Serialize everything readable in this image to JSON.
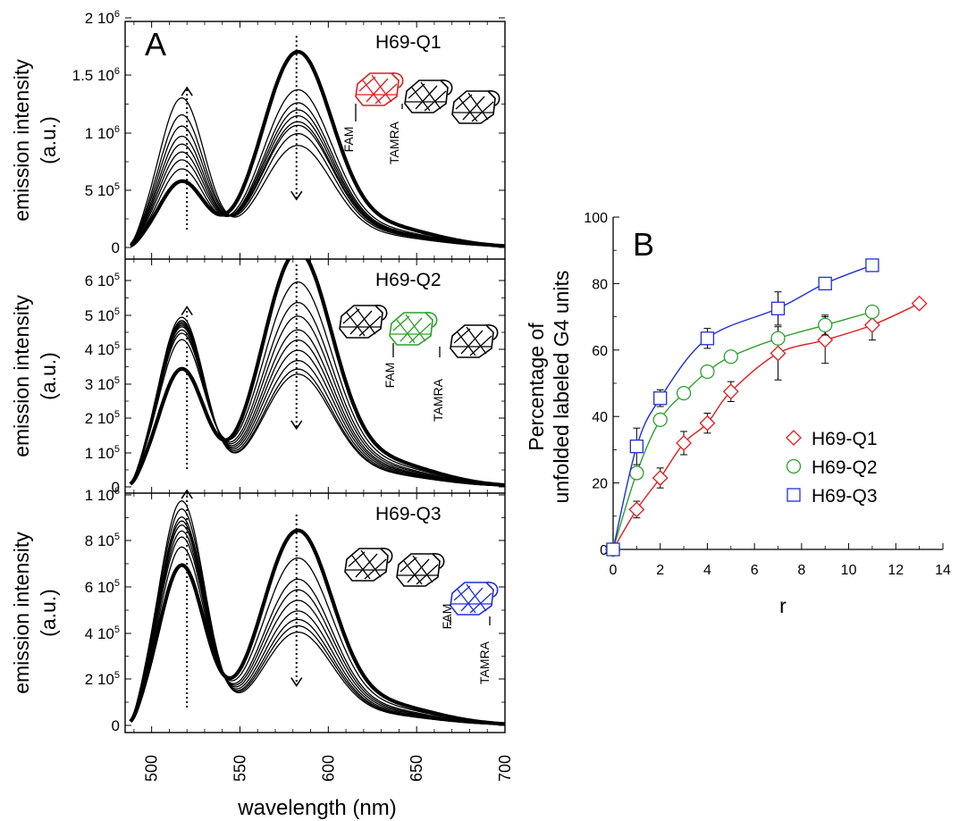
{
  "colors": {
    "red": "#e31a1c",
    "green": "#2ca02c",
    "blue": "#1f2fd6",
    "black": "#000000"
  },
  "panel_a": {
    "letter": "A",
    "xlabel": "wavelength (nm)",
    "xticks": [
      "500",
      "550",
      "600",
      "650",
      "700"
    ],
    "tags": {
      "fam": "FAM",
      "tamra": "TAMRA"
    },
    "panels": [
      {
        "label": "H69-Q1",
        "ylabel1": "emission intensity",
        "ylabel2": "(a.u.)",
        "yticks": [
          "0",
          "5 10",
          "1 10",
          "1.5 10",
          "2 10"
        ],
        "yexps": [
          "",
          "5",
          "6",
          "6",
          "6"
        ]
      },
      {
        "label": "H69-Q2",
        "ylabel1": "emission intensity",
        "ylabel2": "(a.u.)",
        "yticks": [
          "0",
          "1 10",
          "2 10",
          "3 10",
          "4 10",
          "5 10",
          "6 10"
        ],
        "yexps": [
          "",
          "5",
          "5",
          "5",
          "5",
          "5",
          "5"
        ]
      },
      {
        "label": "H69-Q3",
        "ylabel1": "emission intensity",
        "ylabel2": "(a.u.)",
        "yticks": [
          "0",
          "2 10",
          "4 10",
          "6 10",
          "8 10",
          "1 10"
        ],
        "yexps": [
          "",
          "5",
          "5",
          "5",
          "5",
          "6"
        ]
      }
    ]
  },
  "panel_b": {
    "letter": "B",
    "xlabel": "r",
    "ylabel1": "Percentage of",
    "ylabel2": "unfolded labeled G4 units",
    "xticks": [
      "0",
      "2",
      "4",
      "6",
      "8",
      "10",
      "12",
      "14"
    ],
    "yticks": [
      "0",
      "20",
      "40",
      "60",
      "80",
      "100"
    ],
    "legend": [
      "H69-Q1",
      "H69-Q2",
      "H69-Q3"
    ]
  },
  "chart_data": [
    {
      "type": "line",
      "title": "H69-Q1",
      "xlabel": "wavelength (nm)",
      "ylabel": "emission intensity (a.u.)",
      "xlim": [
        485,
        700
      ],
      "ylim": [
        0,
        2000000
      ],
      "peaks_nm": [
        517,
        582
      ],
      "series": [
        {
          "peak1": 580000,
          "peak2": 1650000
        },
        {
          "peak1": 690000,
          "peak2": 1330000
        },
        {
          "peak1": 770000,
          "peak2": 1220000
        },
        {
          "peak1": 840000,
          "peak2": 1160000
        },
        {
          "peak1": 910000,
          "peak2": 1110000
        },
        {
          "peak1": 980000,
          "peak2": 1060000
        },
        {
          "peak1": 1070000,
          "peak2": 1030000
        },
        {
          "peak1": 1170000,
          "peak2": 960000
        },
        {
          "peak1": 1320000,
          "peak2": 860000
        }
      ],
      "arrows": [
        "up at 520 nm",
        "down at 582 nm"
      ]
    },
    {
      "type": "line",
      "title": "H69-Q2",
      "xlabel": "wavelength (nm)",
      "ylabel": "emission intensity (a.u.)",
      "xlim": [
        485,
        700
      ],
      "ylim": [
        0,
        700000
      ],
      "peaks_nm": [
        517,
        582
      ],
      "series": [
        {
          "peak1": 360000,
          "peak2": 690000
        },
        {
          "peak1": 450000,
          "peak2": 600000
        },
        {
          "peak1": 470000,
          "peak2": 540000
        },
        {
          "peak1": 480000,
          "peak2": 500000
        },
        {
          "peak1": 490000,
          "peak2": 460000
        },
        {
          "peak1": 495000,
          "peak2": 430000
        },
        {
          "peak1": 500000,
          "peak2": 400000
        },
        {
          "peak1": 505000,
          "peak2": 370000
        },
        {
          "peak1": 510000,
          "peak2": 345000
        },
        {
          "peak1": 520000,
          "peak2": 330000
        }
      ],
      "arrows": [
        "up at 520 nm",
        "down at 582 nm"
      ]
    },
    {
      "type": "line",
      "title": "H69-Q3",
      "xlabel": "wavelength (nm)",
      "ylabel": "emission intensity (a.u.)",
      "xlim": [
        485,
        700
      ],
      "ylim": [
        0,
        1150000
      ],
      "peaks_nm": [
        517,
        582
      ],
      "series": [
        {
          "peak1": 790000,
          "peak2": 920000
        },
        {
          "peak1": 880000,
          "peak2": 790000
        },
        {
          "peak1": 930000,
          "peak2": 690000
        },
        {
          "peak1": 960000,
          "peak2": 640000
        },
        {
          "peak1": 990000,
          "peak2": 590000
        },
        {
          "peak1": 1010000,
          "peak2": 540000
        },
        {
          "peak1": 1030000,
          "peak2": 500000
        },
        {
          "peak1": 1070000,
          "peak2": 470000
        },
        {
          "peak1": 1110000,
          "peak2": 440000
        }
      ],
      "arrows": [
        "up at 520 nm",
        "down at 582 nm"
      ]
    },
    {
      "type": "line",
      "title": "",
      "xlabel": "r",
      "ylabel": "Percentage of unfolded labeled G4 units",
      "xlim": [
        0,
        14
      ],
      "ylim": [
        0,
        100
      ],
      "legend_position": "right",
      "series": [
        {
          "name": "H69-Q1",
          "marker": "diamond",
          "color": "#e31a1c",
          "x": [
            0,
            1,
            2,
            3,
            4,
            5,
            7,
            9,
            11,
            13
          ],
          "y": [
            0,
            12,
            21.5,
            32,
            38,
            47.5,
            59,
            63,
            67.5,
            74
          ],
          "err": [
            0,
            2.5,
            3,
            3.5,
            3,
            3,
            8,
            7,
            4.5,
            0
          ]
        },
        {
          "name": "H69-Q2",
          "marker": "circle",
          "color": "#2ca02c",
          "x": [
            0,
            1,
            2,
            3,
            4,
            5,
            7,
            9,
            11
          ],
          "y": [
            0,
            23,
            39,
            47,
            53.5,
            58,
            63.5,
            67.5,
            71.5
          ],
          "err": [
            0,
            0,
            0,
            0,
            0,
            0,
            0,
            3,
            0
          ]
        },
        {
          "name": "H69-Q3",
          "marker": "square",
          "color": "#1f2fd6",
          "x": [
            0,
            1,
            2,
            4,
            7,
            9,
            11
          ],
          "y": [
            0,
            31,
            45.5,
            63.5,
            72.5,
            80,
            85.5
          ],
          "err": [
            0,
            5.5,
            2.5,
            3,
            5,
            0,
            0
          ]
        }
      ]
    }
  ]
}
